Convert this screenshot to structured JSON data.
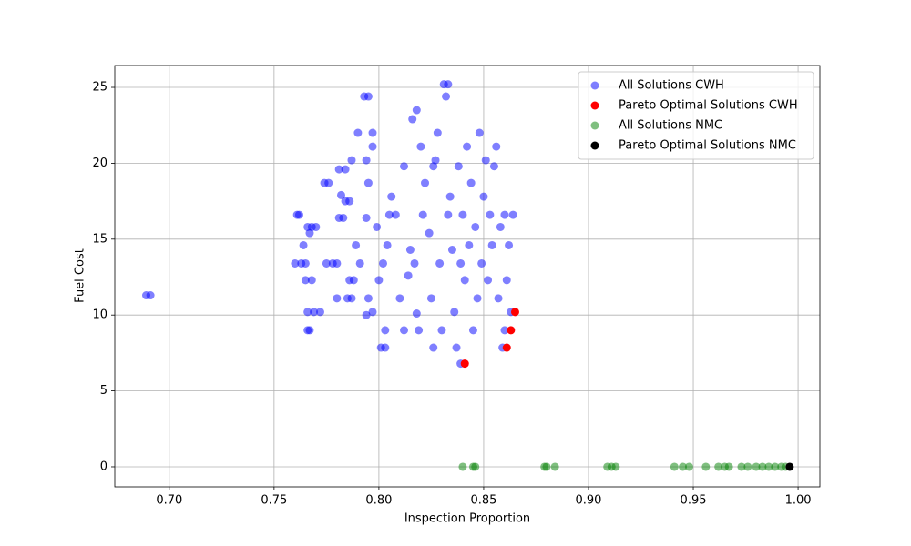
{
  "chart_data": {
    "type": "scatter",
    "x_label": "Inspection Proportion",
    "y_label": "Fuel Cost",
    "xlim": [
      0.674,
      1.0104
    ],
    "ylim": [
      -1.32,
      26.44
    ],
    "xticks": [
      {
        "value": 0.7,
        "label": "0.70"
      },
      0.75,
      {
        "value": 0.8,
        "label": "0.80"
      },
      0.85,
      {
        "value": 0.9,
        "label": "0.90"
      },
      0.95,
      {
        "value": 1.0,
        "label": "1.00"
      }
    ],
    "yticks": [
      0,
      5,
      10,
      15,
      20,
      25
    ],
    "grid": true,
    "legend": "upper right",
    "series": [
      {
        "name": "All Solutions CWH",
        "color": "#0000ff",
        "alpha": 0.5,
        "x": [
          0.689,
          0.691,
          0.761,
          0.762,
          0.76,
          0.763,
          0.765,
          0.764,
          0.766,
          0.768,
          0.77,
          0.765,
          0.768,
          0.766,
          0.769,
          0.772,
          0.766,
          0.767,
          0.767,
          0.774,
          0.776,
          0.775,
          0.778,
          0.78,
          0.78,
          0.781,
          0.783,
          0.781,
          0.784,
          0.782,
          0.784,
          0.786,
          0.785,
          0.787,
          0.787,
          0.786,
          0.788,
          0.789,
          0.791,
          0.79,
          0.793,
          0.795,
          0.794,
          0.795,
          0.794,
          0.795,
          0.794,
          0.797,
          0.797,
          0.797,
          0.799,
          0.8,
          0.801,
          0.803,
          0.803,
          0.802,
          0.804,
          0.805,
          0.806,
          0.808,
          0.81,
          0.812,
          0.814,
          0.815,
          0.816,
          0.818,
          0.818,
          0.82,
          0.819,
          0.821,
          0.822,
          0.824,
          0.825,
          0.826,
          0.827,
          0.828,
          0.829,
          0.83,
          0.831,
          0.833,
          0.832,
          0.834,
          0.835,
          0.836,
          0.837,
          0.838,
          0.839,
          0.84,
          0.841,
          0.842,
          0.843,
          0.844,
          0.845,
          0.846,
          0.847,
          0.848,
          0.849,
          0.85,
          0.851,
          0.852,
          0.853,
          0.854,
          0.855,
          0.856,
          0.857,
          0.858,
          0.859,
          0.86,
          0.861,
          0.862,
          0.863,
          0.864,
          0.86,
          0.812,
          0.826,
          0.833,
          0.817,
          0.839
        ],
        "values": [
          11.3,
          11.3,
          16.6,
          16.6,
          13.4,
          13.4,
          13.4,
          14.6,
          15.8,
          15.8,
          15.8,
          12.3,
          12.3,
          10.2,
          10.2,
          10.2,
          9.0,
          9.0,
          15.4,
          18.7,
          18.7,
          13.4,
          13.4,
          13.4,
          11.1,
          16.4,
          16.4,
          19.6,
          19.6,
          17.9,
          17.5,
          17.5,
          11.1,
          11.1,
          20.2,
          12.3,
          12.3,
          14.6,
          13.4,
          22.0,
          24.4,
          24.4,
          20.2,
          18.7,
          16.4,
          11.1,
          10.0,
          10.2,
          22.0,
          21.1,
          15.8,
          12.3,
          7.85,
          7.85,
          9.0,
          13.4,
          14.6,
          16.6,
          17.8,
          16.6,
          11.1,
          19.8,
          12.6,
          14.3,
          22.9,
          10.1,
          23.5,
          21.1,
          9.0,
          16.6,
          18.7,
          15.4,
          11.1,
          7.85,
          20.2,
          22.0,
          13.4,
          9.0,
          25.2,
          25.2,
          24.4,
          17.8,
          14.3,
          10.2,
          7.85,
          19.8,
          6.8,
          16.6,
          12.3,
          21.1,
          14.6,
          18.7,
          9.0,
          15.8,
          11.1,
          22.0,
          13.4,
          17.8,
          20.2,
          12.3,
          16.6,
          14.6,
          19.8,
          21.1,
          11.1,
          15.8,
          7.85,
          16.6,
          12.3,
          14.6,
          10.2,
          16.6,
          9.0,
          9.0,
          19.8,
          16.6,
          13.4,
          13.4
        ]
      },
      {
        "name": "Pareto Optimal Solutions CWH",
        "color": "#ff0000",
        "alpha": 1,
        "x": [
          0.865,
          0.863,
          0.861,
          0.841
        ],
        "values": [
          10.2,
          9.0,
          7.85,
          6.8
        ]
      },
      {
        "name": "All Solutions NMC",
        "color": "#008000",
        "alpha": 0.5,
        "x": [
          0.84,
          0.845,
          0.846,
          0.879,
          0.88,
          0.884,
          0.909,
          0.911,
          0.913,
          0.941,
          0.945,
          0.948,
          0.956,
          0.962,
          0.965,
          0.967,
          0.973,
          0.976,
          0.98,
          0.983,
          0.986,
          0.989,
          0.992,
          0.994
        ],
        "values": [
          0,
          0,
          0,
          0,
          0,
          0,
          0,
          0,
          0,
          0,
          0,
          0,
          0,
          0,
          0,
          0,
          0,
          0,
          0,
          0,
          0,
          0,
          0,
          0
        ]
      },
      {
        "name": "Pareto Optimal Solutions NMC",
        "color": "#000000",
        "alpha": 1,
        "x": [
          0.996
        ],
        "values": [
          0
        ]
      }
    ]
  }
}
